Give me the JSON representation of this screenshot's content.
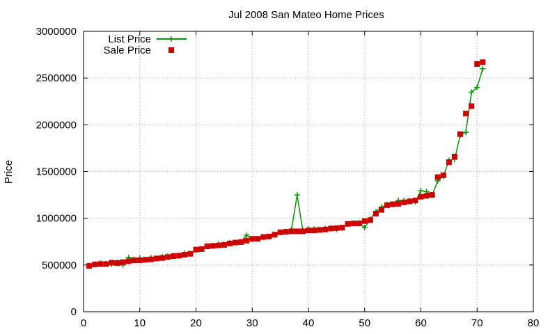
{
  "chart_data": {
    "type": "scatter",
    "title": "Jul 2008 San Mateo Home Prices",
    "xlabel": "",
    "ylabel": "Price",
    "xlim": [
      0,
      80
    ],
    "ylim": [
      0,
      3000000
    ],
    "xticks": [
      0,
      10,
      20,
      30,
      40,
      50,
      60,
      70,
      80
    ],
    "yticks": [
      0,
      500000,
      1000000,
      1500000,
      2000000,
      2500000,
      3000000
    ],
    "grid": true,
    "legend_position": "top-left",
    "series": [
      {
        "name": "List Price",
        "style": "line+cross",
        "color": "#009900",
        "x": [
          1,
          2,
          3,
          4,
          5,
          6,
          7,
          8,
          9,
          10,
          11,
          12,
          13,
          14,
          15,
          16,
          17,
          18,
          19,
          20,
          21,
          22,
          23,
          24,
          25,
          26,
          27,
          28,
          29,
          30,
          31,
          32,
          33,
          34,
          35,
          36,
          37,
          38,
          39,
          40,
          41,
          42,
          43,
          44,
          45,
          46,
          47,
          48,
          49,
          50,
          51,
          52,
          53,
          54,
          55,
          56,
          57,
          58,
          59,
          60,
          61,
          62,
          63,
          64,
          65,
          66,
          67,
          68,
          69,
          70,
          71
        ],
        "y": [
          495000,
          510000,
          520000,
          515000,
          505000,
          530000,
          500000,
          580000,
          560000,
          575000,
          560000,
          580000,
          570000,
          590000,
          595000,
          600000,
          600000,
          625000,
          620000,
          660000,
          670000,
          700000,
          705000,
          720000,
          720000,
          740000,
          740000,
          750000,
          820000,
          775000,
          780000,
          795000,
          800000,
          820000,
          850000,
          860000,
          885000,
          1250000,
          870000,
          885000,
          885000,
          880000,
          890000,
          895000,
          880000,
          895000,
          940000,
          945000,
          950000,
          900000,
          990000,
          1070000,
          1120000,
          1145000,
          1150000,
          1190000,
          1190000,
          1190000,
          1175000,
          1295000,
          1285000,
          1245000,
          1400000,
          1450000,
          1620000,
          1630000,
          1890000,
          1920000,
          2350000,
          2400000,
          2600000
        ]
      },
      {
        "name": "Sale Price",
        "style": "square",
        "color": "#cc0000",
        "x": [
          1,
          2,
          3,
          4,
          5,
          6,
          7,
          8,
          9,
          10,
          11,
          12,
          13,
          14,
          15,
          16,
          17,
          18,
          19,
          20,
          21,
          22,
          23,
          24,
          25,
          26,
          27,
          28,
          29,
          30,
          31,
          32,
          33,
          34,
          35,
          36,
          37,
          38,
          39,
          40,
          41,
          42,
          43,
          44,
          45,
          46,
          47,
          48,
          49,
          50,
          51,
          52,
          53,
          54,
          55,
          56,
          57,
          58,
          59,
          60,
          61,
          62,
          63,
          64,
          65,
          66,
          67,
          68,
          69,
          70,
          71
        ],
        "y": [
          490000,
          505000,
          510000,
          510000,
          525000,
          520000,
          530000,
          540000,
          550000,
          550000,
          555000,
          560000,
          570000,
          575000,
          585000,
          595000,
          600000,
          610000,
          620000,
          665000,
          670000,
          700000,
          705000,
          710000,
          715000,
          730000,
          740000,
          745000,
          760000,
          780000,
          780000,
          800000,
          805000,
          825000,
          850000,
          855000,
          860000,
          860000,
          860000,
          870000,
          870000,
          875000,
          880000,
          890000,
          895000,
          900000,
          940000,
          945000,
          945000,
          970000,
          980000,
          1050000,
          1090000,
          1140000,
          1150000,
          1155000,
          1170000,
          1180000,
          1190000,
          1230000,
          1240000,
          1250000,
          1440000,
          1460000,
          1600000,
          1660000,
          1900000,
          2120000,
          2200000,
          2650000,
          2670000
        ]
      }
    ]
  }
}
